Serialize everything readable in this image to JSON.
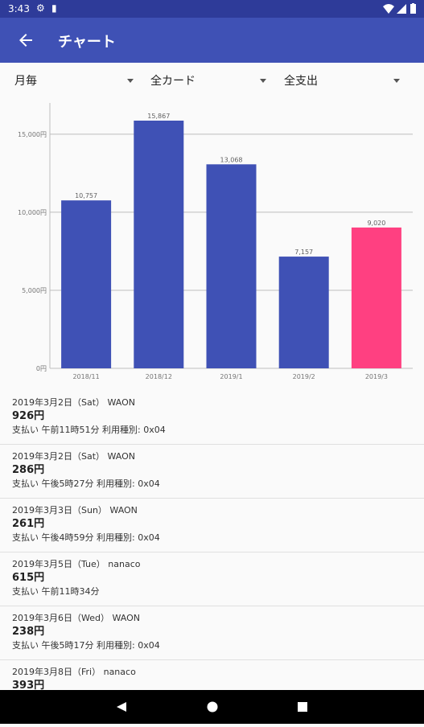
{
  "status_bar": {
    "time": "3:43"
  },
  "app_bar": {
    "title": "チャート"
  },
  "filters": {
    "period": "月毎",
    "card": "全カード",
    "category": "全支出"
  },
  "chart_data": {
    "type": "bar",
    "categories": [
      "2018/11",
      "2018/12",
      "2019/1",
      "2019/2",
      "2019/3"
    ],
    "values": [
      10757,
      15867,
      13068,
      7157,
      9020
    ],
    "value_labels": [
      "10,757",
      "15,867",
      "13,068",
      "7,157",
      "9,020"
    ],
    "ylim": [
      0,
      17000
    ],
    "yticks": [
      0,
      5000,
      10000,
      15000
    ],
    "ytick_labels": [
      "0円",
      "5,000円",
      "10,000円",
      "15,000円"
    ],
    "grid": true,
    "bar_color": "#3f51b5",
    "highlight_color": "#ff4081",
    "highlight_index": 4
  },
  "transactions": [
    {
      "date": "2019年3月2日（Sat） WAON",
      "amount": "926円",
      "detail": "支払い 午前11時51分 利用種別: 0x04"
    },
    {
      "date": "2019年3月2日（Sat） WAON",
      "amount": "286円",
      "detail": "支払い 午後5時27分 利用種別: 0x04"
    },
    {
      "date": "2019年3月3日（Sun） WAON",
      "amount": "261円",
      "detail": "支払い 午後4時59分 利用種別: 0x04"
    },
    {
      "date": "2019年3月5日（Tue） nanaco",
      "amount": "615円",
      "detail": "支払い 午前11時34分"
    },
    {
      "date": "2019年3月6日（Wed） WAON",
      "amount": "238円",
      "detail": "支払い 午後5時17分 利用種別: 0x04"
    },
    {
      "date": "2019年3月8日（Fri） nanaco",
      "amount": "393円",
      "detail": ""
    }
  ],
  "colors": {
    "primary": "#3f51b5",
    "primary_dark": "#2e3b99",
    "accent": "#ff4081"
  }
}
